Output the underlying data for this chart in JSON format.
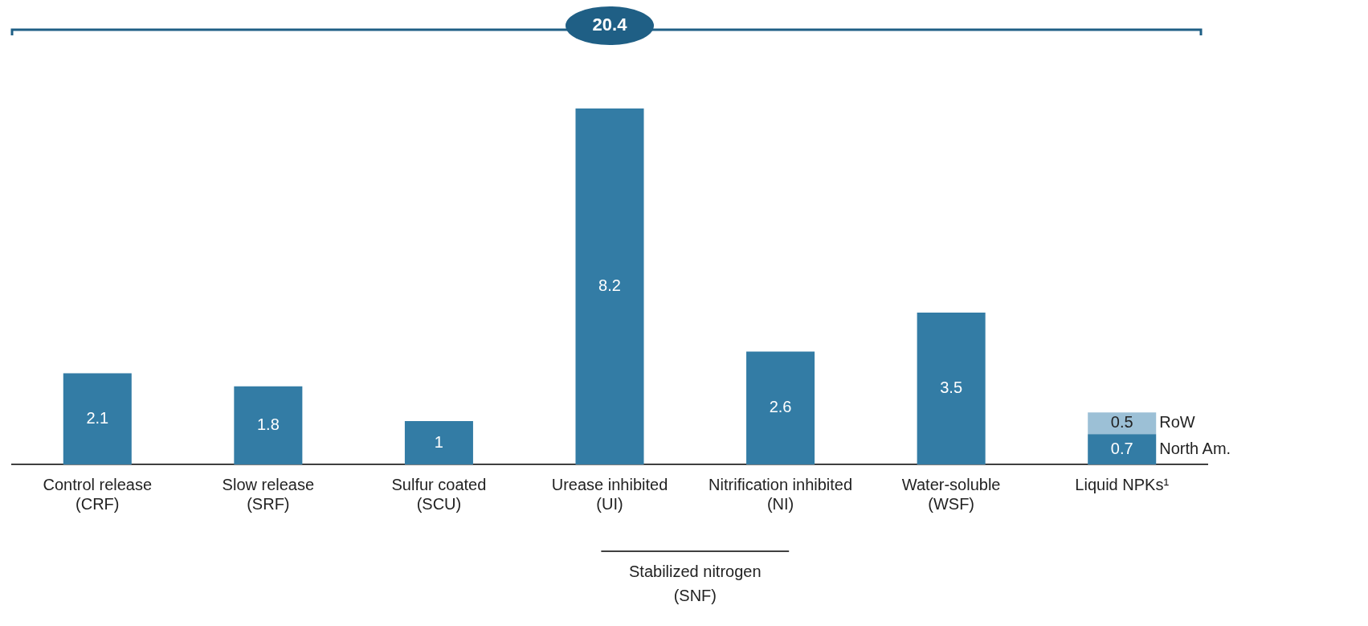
{
  "chart_data": {
    "type": "bar",
    "stacked": true,
    "data_labels": true,
    "legend": false,
    "categories": [
      "Control release\n(CRF)",
      "Slow release\n(SRF)",
      "Sulfur coated\n(SCU)",
      "Urease inhibited\n(UI)",
      "Nitrification inhibited\n(NI)",
      "Water-soluble\n(WSF)",
      "Liquid NPKs¹"
    ],
    "series": [
      {
        "name": "North Am.",
        "color": "#337ca5",
        "values": [
          2.1,
          1.8,
          1,
          8.2,
          2.6,
          3.5,
          0.7
        ]
      },
      {
        "name": "RoW",
        "color": "#9cc0d6",
        "values": [
          null,
          null,
          null,
          null,
          null,
          null,
          0.5
        ]
      }
    ],
    "annotations": [
      "20.4",
      "Stabilized nitrogen\n(SNF)"
    ]
  }
}
